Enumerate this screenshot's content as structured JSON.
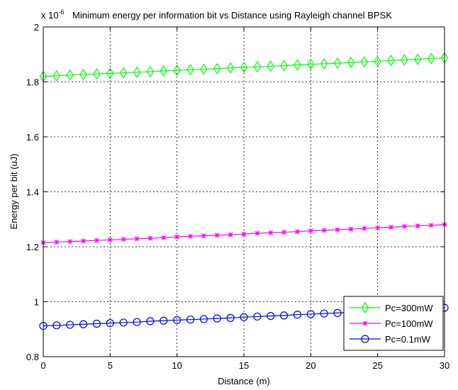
{
  "chart_data": {
    "type": "line",
    "title": "Minimum energy per information bit vs Distance using Rayleigh channel BPSK",
    "exponent_label": "x 10",
    "exponent_power": "-6",
    "xlabel": "Distance (m)",
    "ylabel": "Energy per bit (uJ)",
    "xlim": [
      0,
      30
    ],
    "ylim": [
      0.8,
      2.0
    ],
    "xticks": [
      "0",
      "5",
      "10",
      "15",
      "20",
      "25",
      "30"
    ],
    "yticks": [
      "0.8",
      "1",
      "1.2",
      "1.4",
      "1.6",
      "1.8",
      "2"
    ],
    "grid": true,
    "legend_position": "bottom-right",
    "x": [
      0,
      1,
      2,
      3,
      4,
      5,
      6,
      7,
      8,
      9,
      10,
      11,
      12,
      13,
      14,
      15,
      16,
      17,
      18,
      19,
      20,
      21,
      22,
      23,
      24,
      25,
      26,
      27,
      28,
      29,
      30
    ],
    "series": [
      {
        "name": "Pc=300mW",
        "color": "#00ff00",
        "marker": "diamond",
        "values": [
          1.82,
          1.822,
          1.825,
          1.827,
          1.829,
          1.831,
          1.833,
          1.835,
          1.837,
          1.84,
          1.842,
          1.844,
          1.846,
          1.848,
          1.851,
          1.853,
          1.855,
          1.857,
          1.859,
          1.862,
          1.864,
          1.866,
          1.868,
          1.871,
          1.873,
          1.875,
          1.878,
          1.88,
          1.882,
          1.885,
          1.887
        ]
      },
      {
        "name": "Pc=100mW",
        "color": "#ff00ff",
        "marker": "star",
        "values": [
          1.215,
          1.217,
          1.219,
          1.221,
          1.223,
          1.225,
          1.227,
          1.229,
          1.231,
          1.233,
          1.236,
          1.238,
          1.24,
          1.242,
          1.244,
          1.246,
          1.249,
          1.251,
          1.253,
          1.255,
          1.258,
          1.26,
          1.262,
          1.264,
          1.267,
          1.269,
          1.271,
          1.274,
          1.276,
          1.278,
          1.281
        ]
      },
      {
        "name": "Pc=0.1mW",
        "color": "#0000ff",
        "marker": "circle",
        "values": [
          0.912,
          0.914,
          0.916,
          0.918,
          0.92,
          0.922,
          0.924,
          0.926,
          0.929,
          0.931,
          0.933,
          0.935,
          0.937,
          0.939,
          0.941,
          0.944,
          0.946,
          0.948,
          0.95,
          0.953,
          0.955,
          0.957,
          0.959,
          0.962,
          0.964,
          0.966,
          0.969,
          0.971,
          0.973,
          0.976,
          0.978
        ]
      }
    ]
  }
}
